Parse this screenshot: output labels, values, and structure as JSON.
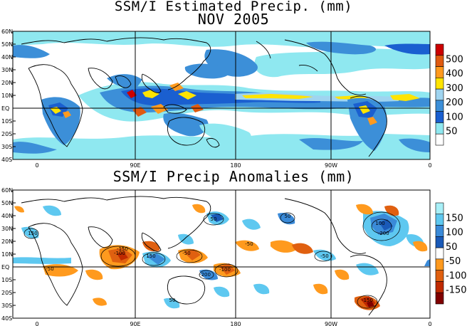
{
  "title_line1": "SSM/I Estimated Precip. (mm)",
  "title_line2": "NOV 2005",
  "title_bottom": "SSM/I Precip Anomalies (mm)",
  "lat_labels": [
    "60N",
    "50N",
    "40N",
    "30N",
    "20N",
    "10N",
    "EQ",
    "10S",
    "20S",
    "30S",
    "40S"
  ],
  "lon_labels": [
    "0",
    "90E",
    "180",
    "90W",
    "0"
  ],
  "top_colorbar": {
    "labels": [
      "500",
      "400",
      "300",
      "200",
      "100",
      "50"
    ],
    "colors": [
      "#cc0000",
      "#e05a10",
      "#ff9a1e",
      "#ffe400",
      "#9fd4f0",
      "#3c8fd8",
      "#1a5fd0",
      "#8fe8f0",
      "#ffffff"
    ]
  },
  "bottom_colorbar": {
    "labels": [
      "150",
      "100",
      "50",
      "-50",
      "-100",
      "-150"
    ],
    "colors": [
      "#a8f0f8",
      "#5ec8f0",
      "#3a8ad8",
      "#1a5ab8",
      "#ffffff",
      "#ff9a1e",
      "#e06010",
      "#c02a00",
      "#800000"
    ]
  },
  "contour_labels_bottom": [
    "-100",
    "-50",
    "50",
    "100",
    "-150",
    "150",
    "200",
    "-200"
  ]
}
